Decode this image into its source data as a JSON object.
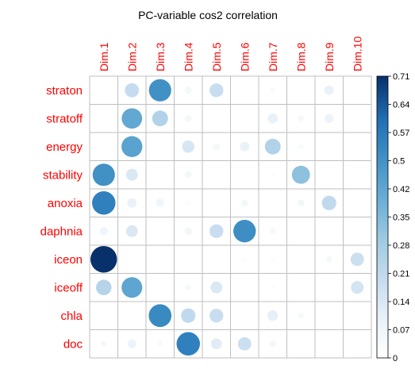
{
  "chart_data": {
    "type": "heatmap",
    "title": "PC-variable cos2 correlation",
    "columns": [
      "Dim.1",
      "Dim.2",
      "Dim.3",
      "Dim.4",
      "Dim.5",
      "Dim.6",
      "Dim.7",
      "Dim.8",
      "Dim.9",
      "Dim.10"
    ],
    "rows": [
      "straton",
      "stratoff",
      "energy",
      "stability",
      "anoxia",
      "daphnia",
      "iceon",
      "iceoff",
      "chla",
      "doc"
    ],
    "values": [
      [
        0.0,
        0.2,
        0.5,
        0.05,
        0.19,
        0.0,
        0.03,
        0.01,
        0.09,
        0.01
      ],
      [
        0.0,
        0.42,
        0.25,
        0.05,
        0.01,
        0.01,
        0.1,
        0.04,
        0.08,
        0.01
      ],
      [
        0.01,
        0.44,
        0.0,
        0.15,
        0.05,
        0.09,
        0.25,
        0.03,
        0.01,
        0.0
      ],
      [
        0.5,
        0.14,
        0.01,
        0.05,
        0.0,
        0.01,
        0.02,
        0.33,
        0.0,
        0.0
      ],
      [
        0.55,
        0.09,
        0.07,
        0.02,
        0.0,
        0.05,
        0.01,
        0.05,
        0.21,
        0.01
      ],
      [
        0.07,
        0.14,
        0.0,
        0.06,
        0.19,
        0.51,
        0.04,
        0.0,
        0.01,
        0.0
      ],
      [
        0.71,
        0.0,
        0.0,
        0.0,
        0.01,
        0.02,
        0.02,
        0.0,
        0.04,
        0.18
      ],
      [
        0.24,
        0.43,
        0.0,
        0.04,
        0.14,
        0.0,
        0.02,
        0.0,
        0.0,
        0.16
      ],
      [
        0.01,
        0.01,
        0.52,
        0.21,
        0.19,
        0.0,
        0.11,
        0.04,
        0.0,
        0.0
      ],
      [
        0.04,
        0.08,
        0.03,
        0.55,
        0.12,
        0.18,
        0.05,
        0.0,
        0.0,
        0.0
      ]
    ],
    "colorbar": {
      "min": 0,
      "max": 0.71,
      "ticks": [
        "0.71",
        "0.64",
        "0.57",
        "0.5",
        "0.42",
        "0.35",
        "0.28",
        "0.21",
        "0.14",
        "0.07",
        "0"
      ]
    },
    "colors": {
      "label": "#ff0000",
      "grid": "#bfbfbf",
      "low": "#ffffff",
      "high": "#08306b"
    }
  }
}
